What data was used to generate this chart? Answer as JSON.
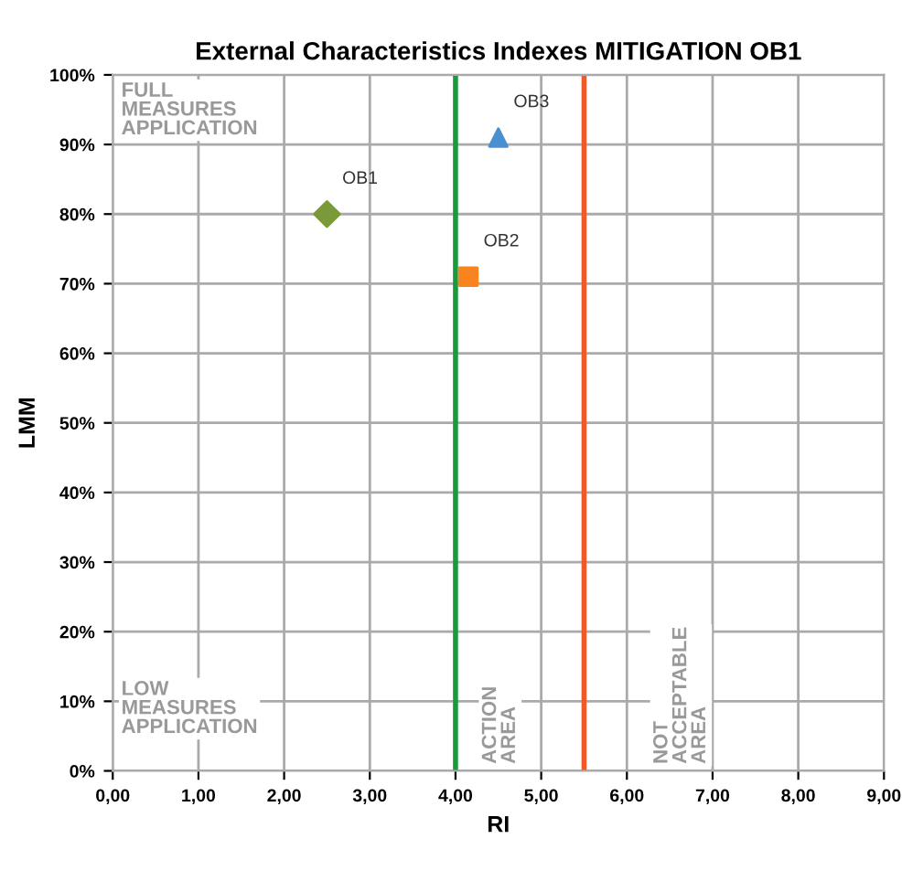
{
  "chart_data": {
    "type": "scatter",
    "title": "External Characteristics Indexes MITIGATION OB1",
    "xlabel": "RI",
    "ylabel": "LMM",
    "series": [
      {
        "name": "OB1",
        "color": "#7a9a3a",
        "x": [
          2.5
        ],
        "values": [
          80
        ],
        "marker": "diamond"
      },
      {
        "name": "OB2",
        "color": "#f7841f",
        "x": [
          4.15
        ],
        "values": [
          71
        ],
        "marker": "square"
      },
      {
        "name": "OB3",
        "color": "#4a90d0",
        "x": [
          4.5
        ],
        "values": [
          91
        ],
        "marker": "triangle"
      }
    ],
    "xlim": [
      0,
      9
    ],
    "xticks": [
      {
        "value": 0,
        "label": "0,00"
      },
      {
        "value": 1,
        "label": "1,00"
      },
      {
        "value": 2,
        "label": "2,00"
      },
      {
        "value": 3,
        "label": "3,00"
      },
      {
        "value": 4,
        "label": "4,00"
      },
      {
        "value": 5,
        "label": "5,00"
      },
      {
        "value": 6,
        "label": "6,00"
      },
      {
        "value": 7,
        "label": "7,00"
      },
      {
        "value": 8,
        "label": "8,00"
      },
      {
        "value": 9,
        "label": "9,00"
      }
    ],
    "ylim": [
      0,
      100
    ],
    "yticks": [
      {
        "value": 0,
        "label": "0%"
      },
      {
        "value": 10,
        "label": "10%"
      },
      {
        "value": 20,
        "label": "20%"
      },
      {
        "value": 30,
        "label": "30%"
      },
      {
        "value": 40,
        "label": "40%"
      },
      {
        "value": 50,
        "label": "50%"
      },
      {
        "value": 60,
        "label": "60%"
      },
      {
        "value": 70,
        "label": "70%"
      },
      {
        "value": 80,
        "label": "80%"
      },
      {
        "value": 90,
        "label": "90%"
      },
      {
        "value": 100,
        "label": "100%"
      }
    ],
    "ref_lines": [
      {
        "axis": "x",
        "value": 4,
        "color": "#1a9a3a"
      },
      {
        "axis": "x",
        "value": 5.5,
        "color": "#f05a28"
      }
    ],
    "annotations": [
      "FULL\nMEASURES\nAPPLICATION",
      "LOW\nMEASURES\nAPPLICATION",
      "ACTION\nAREA",
      "NOT\nACCEPTABLE\nAREA"
    ],
    "grid": true
  }
}
